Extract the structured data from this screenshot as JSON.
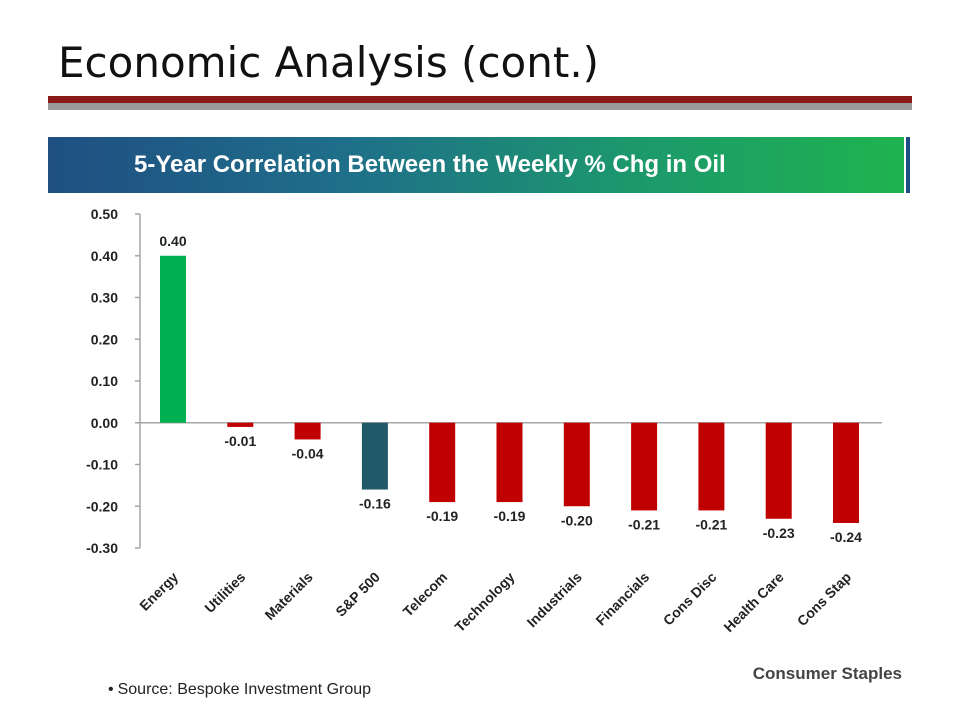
{
  "slide": {
    "title": "Economic Analysis (cont.)",
    "footer_note": "Consumer Staples",
    "source_text": "Source: Bespoke Investment Group"
  },
  "colors": {
    "title_rule_red": "#8b1a1a",
    "title_rule_gray": "#9a9a9a",
    "positive_bar": "#00b050",
    "negative_bar": "#c00000",
    "benchmark_bar": "#215968"
  },
  "chart_data": {
    "type": "bar",
    "title": "5-Year Correlation Between the Weekly % Chg in Oil",
    "categories": [
      "Energy",
      "Utilities",
      "Materials",
      "S&P 500",
      "Telecom",
      "Technology",
      "Industrials",
      "Financials",
      "Cons Disc",
      "Health Care",
      "Cons Stap"
    ],
    "values": [
      0.4,
      -0.01,
      -0.04,
      -0.16,
      -0.19,
      -0.19,
      -0.2,
      -0.21,
      -0.21,
      -0.23,
      -0.24
    ],
    "data_labels": [
      "0.40",
      "-0.01",
      "-0.04",
      "-0.16",
      "-0.19",
      "-0.19",
      "-0.20",
      "-0.21",
      "-0.21",
      "-0.23",
      "-0.24"
    ],
    "bar_colors": [
      "#00b050",
      "#c00000",
      "#c00000",
      "#215968",
      "#c00000",
      "#c00000",
      "#c00000",
      "#c00000",
      "#c00000",
      "#c00000",
      "#c00000"
    ],
    "ylim": [
      -0.3,
      0.5
    ],
    "yticks": [
      "0.50",
      "0.40",
      "0.30",
      "0.20",
      "0.10",
      "0.00",
      "-0.10",
      "-0.20",
      "-0.30"
    ],
    "grid": false,
    "legend": "none",
    "xlabel": "",
    "ylabel": ""
  }
}
